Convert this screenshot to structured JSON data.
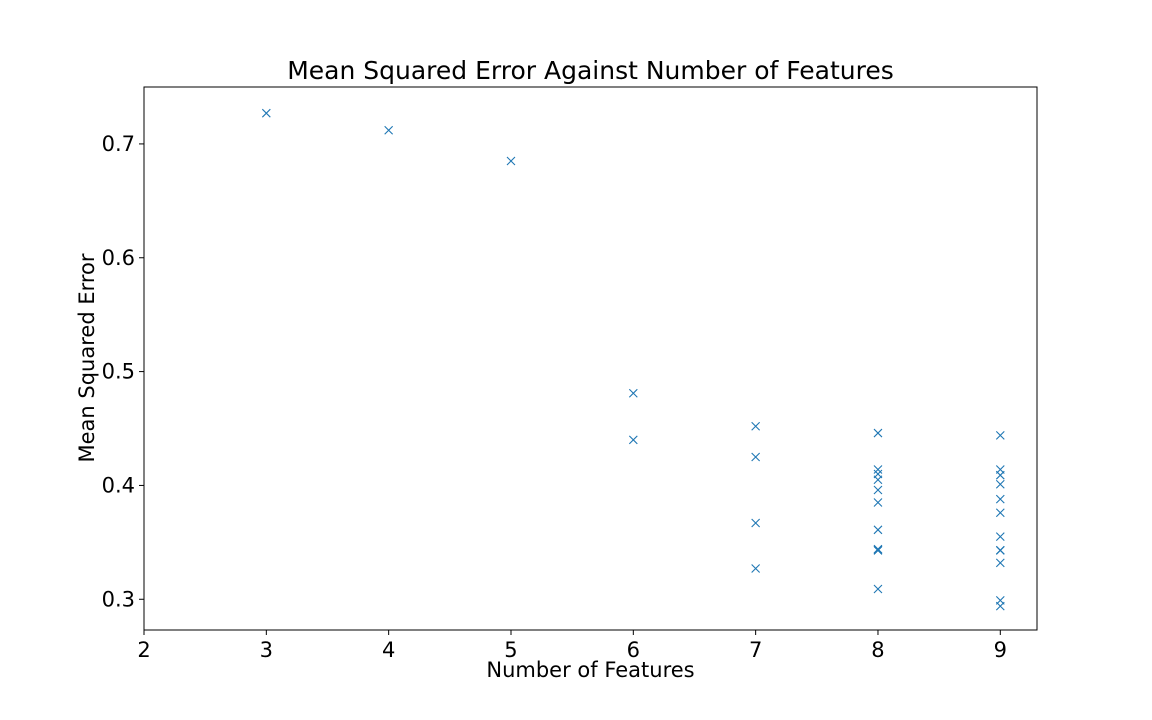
{
  "chart_data": {
    "type": "scatter",
    "title": "Mean Squared Error Against Number of Features",
    "xlabel": "Number of Features",
    "ylabel": "Mean Squared Error",
    "xlim": [
      2,
      9.3
    ],
    "ylim": [
      0.273,
      0.75
    ],
    "xticks": [
      2,
      3,
      4,
      5,
      6,
      7,
      8,
      9
    ],
    "yticks": [
      0.3,
      0.4,
      0.5,
      0.6,
      0.7
    ],
    "grid": false,
    "marker": "x",
    "color": "#1f77b4",
    "series": [
      {
        "x": [
          3,
          4,
          5,
          6,
          6,
          7,
          7,
          7,
          7,
          8,
          8,
          8,
          8,
          8,
          8,
          8,
          8,
          8,
          8,
          8,
          9,
          9,
          9,
          9,
          9,
          9,
          9,
          9,
          9,
          9,
          9,
          9
        ],
        "y": [
          0.727,
          0.712,
          0.685,
          0.481,
          0.44,
          0.452,
          0.425,
          0.367,
          0.327,
          0.446,
          0.414,
          0.41,
          0.405,
          0.396,
          0.385,
          0.361,
          0.344,
          0.343,
          0.309,
          0.343,
          0.444,
          0.414,
          0.409,
          0.401,
          0.388,
          0.376,
          0.355,
          0.343,
          0.332,
          0.299,
          0.294,
          0.343
        ]
      }
    ]
  }
}
